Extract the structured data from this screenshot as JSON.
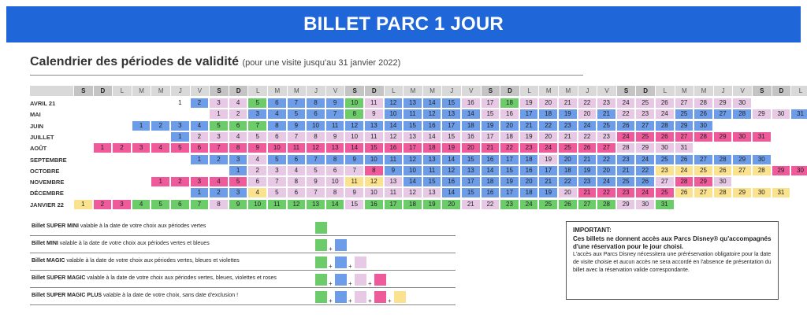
{
  "banner": {
    "title": "BILLET PARC 1 JOUR"
  },
  "section": {
    "title": "Calendrier des périodes de validité",
    "subtitle": "(pour une visite jusqu'au 31 janvier 2022)"
  },
  "colors": {
    "banner": "#1f66d8",
    "green": "#6ccc6a",
    "blue": "#6d9de8",
    "violet": "#e7c9e6",
    "pink": "#ef5a9a",
    "yellow": "#fbe28f",
    "header": "#d9d9d9",
    "header_weekend": "#c4c4c4"
  },
  "calendar": {
    "weekday_headers": [
      "S",
      "D",
      "L",
      "M",
      "M",
      "J",
      "V",
      "S",
      "D",
      "L",
      "M",
      "M",
      "J",
      "V",
      "S",
      "D",
      "L",
      "M",
      "M",
      "J",
      "V",
      "S",
      "D",
      "L",
      "M",
      "M",
      "J",
      "V",
      "S",
      "D",
      "L",
      "M",
      "M",
      "J",
      "V",
      "S",
      "D",
      "L"
    ],
    "months": [
      {
        "label": "AVRIL 21",
        "offset": 5,
        "days": 30,
        "colors": "wbvvgbbbbgvbbbbvvgvvvvvvvvvvvv"
      },
      {
        "label": "MAI",
        "offset": 7,
        "days": 31,
        "colors": "vvbbbbbgvbbbbbvvbbbvbvvvbbbbvvb"
      },
      {
        "label": "JUIN",
        "offset": 3,
        "days": 30,
        "colors": "bbbbgggbbbbbbbbbbbbbbbbbbbbbbb"
      },
      {
        "label": "JUILLET",
        "offset": 5,
        "days": 31,
        "colors": "bvvvvvvvvvvvvvvvvvvvvvvpppppppp"
      },
      {
        "label": "AOÛT",
        "offset": 1,
        "days": 31,
        "colors": "pppppppppppppppppppppppppppvvvv"
      },
      {
        "label": "SEPTEMBRE",
        "offset": 6,
        "days": 30,
        "colors": "bbbvbbbbbbbbbbbbbbvbbbbbbbbbbb"
      },
      {
        "label": "OCTOBRE",
        "offset": 8,
        "days": 31,
        "colors": "bvvvvvvpbbbbbbbbbbbbbbyyyyyyppp"
      },
      {
        "label": "NOVEMBRE",
        "offset": 4,
        "days": 30,
        "colors": "pppppvvvvvyyvbbbbbbbbbbbbbvppv"
      },
      {
        "label": "DÉCEMBRE",
        "offset": 6,
        "days": 31,
        "colors": "bbbyvvvvvvvvvbbbbbbvpppppyyyyyy"
      },
      {
        "label": "JANVIER 22",
        "offset": 0,
        "days": 31,
        "colors": "yppggggvggggggvgggggvvggggggvvg"
      }
    ]
  },
  "legend": [
    {
      "name": "Billet SUPER MINI",
      "desc": "valable à la date de votre choix aux périodes vertes",
      "swatches": [
        "green"
      ]
    },
    {
      "name": "Billet MINI",
      "desc": "valable à la date de votre choix aux périodes vertes et bleues",
      "swatches": [
        "green",
        "blue"
      ]
    },
    {
      "name": "Billet MAGIC",
      "desc": "valable à la date de votre choix aux périodes vertes, bleues et violettes",
      "swatches": [
        "green",
        "blue",
        "violet"
      ]
    },
    {
      "name": "Billet SUPER MAGIC",
      "desc": "valable à la date de votre choix aux périodes vertes, bleues, violettes et roses",
      "swatches": [
        "green",
        "blue",
        "violet",
        "pink"
      ]
    },
    {
      "name": "Billet SUPER MAGIC PLUS",
      "desc": "valable à la date de votre choix, sans date d'exclusion !",
      "swatches": [
        "green",
        "blue",
        "violet",
        "pink",
        "yellow"
      ]
    }
  ],
  "plus_sign": "+",
  "important": {
    "title": "IMPORTANT:",
    "bold_text": "Ces billets ne donnent accès aux Parcs Disney® qu'accompagnés d'une réservation pour le jour choisi.",
    "body": "L'accès aux Parcs Disney nécessitera une préréservation obligatoire pour la date de visite choisie et aucun accès ne sera accordé en l'absence de présentation du billet avec la réservation valide correspondante."
  }
}
